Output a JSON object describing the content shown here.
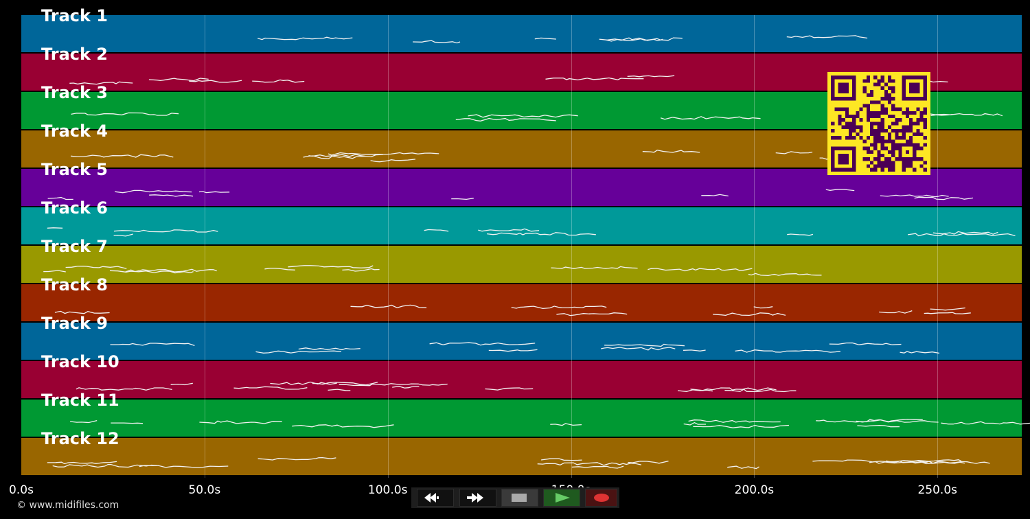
{
  "tracks": [
    {
      "name": "Track 1",
      "color": "#006699"
    },
    {
      "name": "Track 2",
      "color": "#990033"
    },
    {
      "name": "Track 3",
      "color": "#009933"
    },
    {
      "name": "Track 4",
      "color": "#996600"
    },
    {
      "name": "Track 5",
      "color": "#660099"
    },
    {
      "name": "Track 6",
      "color": "#009999"
    },
    {
      "name": "Track 7",
      "color": "#999900"
    },
    {
      "name": "Track 8",
      "color": "#992600"
    },
    {
      "name": "Track 9",
      "color": "#006699"
    },
    {
      "name": "Track 10",
      "color": "#990033"
    },
    {
      "name": "Track 11",
      "color": "#009933"
    },
    {
      "name": "Track 12",
      "color": "#996600"
    }
  ],
  "timeline": {
    "duration_s": 273,
    "ticks": [
      "0.0s",
      "50.0s",
      "100.0s",
      "150.0s",
      "200.0s",
      "250.0s"
    ],
    "tick_values_s": [
      0,
      50,
      100,
      150,
      200,
      250
    ]
  },
  "copyright": "© www.midifiles.com",
  "controls": {
    "rewind_icon": "rewind-icon",
    "fast_forward_icon": "fast-forward-icon",
    "stop_icon": "stop-icon",
    "play_icon": "play-icon",
    "record_icon": "record-icon",
    "play_color": "#66cc66",
    "record_color": "#dd3333"
  },
  "qr_code": {
    "foreground": "#4b0055",
    "background": "#fde724"
  }
}
